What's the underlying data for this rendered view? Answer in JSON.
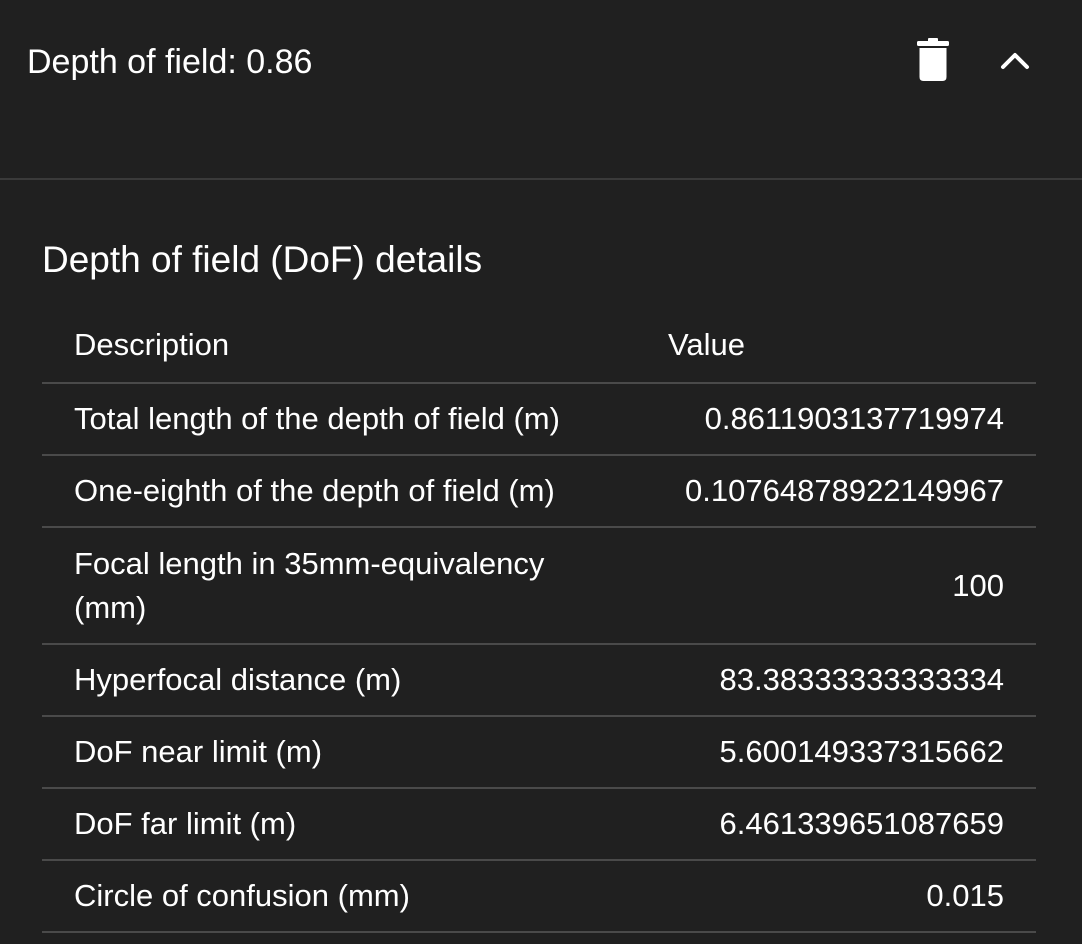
{
  "header": {
    "title": "Depth of field: 0.86",
    "delete_icon": "trash-icon",
    "collapse_icon": "chevron-up-icon"
  },
  "details": {
    "title": "Depth of field (DoF) details",
    "columns": [
      "Description",
      "Value"
    ],
    "rows": [
      {
        "description": "Total length of the depth of field (m)",
        "value": "0.8611903137719974"
      },
      {
        "description": "One-eighth of the depth of field (m)",
        "value": "0.10764878922149967"
      },
      {
        "description": "Focal length in 35mm-equivalency (mm)",
        "value": "100"
      },
      {
        "description": "Hyperfocal distance (m)",
        "value": "83.38333333333334"
      },
      {
        "description": "DoF near limit (m)",
        "value": "5.600149337315662"
      },
      {
        "description": "DoF far limit (m)",
        "value": "6.461339651087659"
      },
      {
        "description": "Circle of confusion (mm)",
        "value": "0.015"
      }
    ]
  },
  "colors": {
    "background": "#202020",
    "text": "#ffffff",
    "divider": "#4a4a4a"
  }
}
